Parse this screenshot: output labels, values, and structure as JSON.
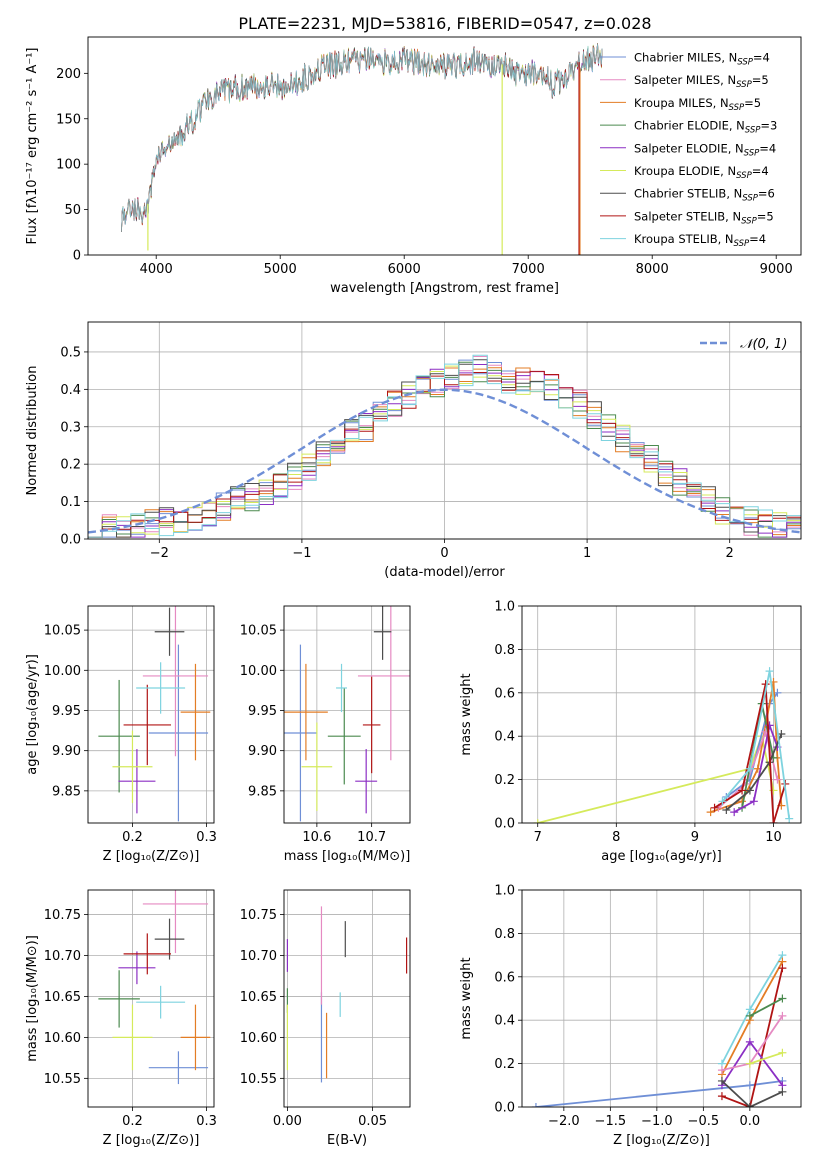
{
  "colors": {
    "chabrier_miles": "#6f8fd6",
    "salpeter_miles": "#e58ac2",
    "kroupa_miles": "#e37d25",
    "chabrier_elodie": "#4b8a4f",
    "salpeter_elodie": "#8b2fc4",
    "kroupa_elodie": "#d5ea5b",
    "chabrier_stelib": "#4d4d4d",
    "salpeter_stelib": "#b01414",
    "kroupa_stelib": "#7ed3df",
    "gauss": "#6f8fd6",
    "grid": "#b0b0b0"
  },
  "chart_data": [
    {
      "id": "spectrum",
      "type": "line",
      "title": "PLATE=2231, MJD=53816, FIBERID=0547, z=0.028",
      "xlabel": "wavelength [Angstrom, rest frame]",
      "ylabel": "Flux [fλ10⁻¹⁷ erg cm⁻² s⁻¹ A⁻¹]",
      "xlim": [
        3450,
        9200
      ],
      "ylim": [
        0,
        240
      ],
      "xticks": [
        4000,
        5000,
        6000,
        7000,
        8000,
        9000
      ],
      "yticks": [
        0,
        50,
        100,
        150,
        200
      ],
      "grid": false,
      "legend_position": "right",
      "continuum": {
        "x": [
          3720,
          3800,
          3900,
          3950,
          4000,
          4100,
          4200,
          4300,
          4400,
          4500,
          4700,
          4900,
          5100,
          5200,
          5300,
          5400,
          5600,
          5800,
          5900,
          6000,
          6200,
          6400,
          6563,
          6700,
          6800,
          6900,
          7000,
          7100,
          7200,
          7300,
          7400,
          7500,
          7600
        ],
        "y": [
          42,
          55,
          45,
          62,
          110,
          118,
          132,
          148,
          172,
          178,
          185,
          188,
          185,
          196,
          205,
          208,
          214,
          214,
          212,
          215,
          210,
          208,
          214,
          208,
          210,
          200,
          198,
          206,
          185,
          198,
          212,
          216,
          220
        ]
      },
      "dips": [
        {
          "x": 3933,
          "y": 5
        },
        {
          "x": 6790,
          "y": 0
        },
        {
          "x": 7410,
          "y": 0
        }
      ],
      "series": [
        {
          "name": "Chabrier MILES, N_SSP=4",
          "label_main": "Chabrier MILES, N",
          "label_sub": "SSP",
          "label_tail": "=4",
          "color_key": "chabrier_miles"
        },
        {
          "name": "Salpeter MILES, N_SSP=5",
          "label_main": "Salpeter MILES, N",
          "label_sub": "SSP",
          "label_tail": "=5",
          "color_key": "salpeter_miles"
        },
        {
          "name": "Kroupa MILES, N_SSP=5",
          "label_main": "Kroupa MILES, N",
          "label_sub": "SSP",
          "label_tail": "=5",
          "color_key": "kroupa_miles"
        },
        {
          "name": "Chabrier ELODIE, N_SSP=3",
          "label_main": "Chabrier ELODIE, N",
          "label_sub": "SSP",
          "label_tail": "=3",
          "color_key": "chabrier_elodie"
        },
        {
          "name": "Salpeter ELODIE, N_SSP=4",
          "label_main": "Salpeter ELODIE, N",
          "label_sub": "SSP",
          "label_tail": "=4",
          "color_key": "salpeter_elodie"
        },
        {
          "name": "Kroupa ELODIE, N_SSP=4",
          "label_main": "Kroupa ELODIE, N",
          "label_sub": "SSP",
          "label_tail": "=4",
          "color_key": "kroupa_elodie"
        },
        {
          "name": "Chabrier STELIB, N_SSP=6",
          "label_main": "Chabrier STELIB, N",
          "label_sub": "SSP",
          "label_tail": "=6",
          "color_key": "chabrier_stelib"
        },
        {
          "name": "Salpeter STELIB, N_SSP=5",
          "label_main": "Salpeter STELIB, N",
          "label_sub": "SSP",
          "label_tail": "=5",
          "color_key": "salpeter_stelib"
        },
        {
          "name": "Kroupa STELIB, N_SSP=4",
          "label_main": "Kroupa STELIB, N",
          "label_sub": "SSP",
          "label_tail": "=4",
          "color_key": "kroupa_stelib"
        }
      ]
    },
    {
      "id": "residuals",
      "type": "line",
      "xlabel": "(data-model)/error",
      "ylabel": "Normed distribution",
      "xlim": [
        -2.5,
        2.5
      ],
      "ylim": [
        0,
        0.58
      ],
      "xticks": [
        -2,
        -1,
        0,
        1,
        2
      ],
      "yticks": [
        0.0,
        0.1,
        0.2,
        0.3,
        0.4,
        0.5
      ],
      "grid": true,
      "legend_position": "top-right",
      "gauss_label": "𝒩(0, 1)",
      "bin_width": 0.1,
      "bins_start": -2.5,
      "hist_base": [
        0.02,
        0.025,
        0.03,
        0.035,
        0.04,
        0.045,
        0.05,
        0.06,
        0.07,
        0.085,
        0.1,
        0.115,
        0.13,
        0.15,
        0.17,
        0.19,
        0.22,
        0.25,
        0.28,
        0.3,
        0.33,
        0.36,
        0.38,
        0.4,
        0.42,
        0.44,
        0.45,
        0.46,
        0.44,
        0.43,
        0.42,
        0.41,
        0.4,
        0.38,
        0.36,
        0.33,
        0.3,
        0.27,
        0.24,
        0.21,
        0.18,
        0.15,
        0.12,
        0.1,
        0.08,
        0.06,
        0.05,
        0.04,
        0.03,
        0.025
      ]
    },
    {
      "id": "age_vs_Z",
      "type": "scatter",
      "xlabel": "Z [log₁₀(Z/Z⊙)]",
      "ylabel": "age  [log₁₀(age/yr)]",
      "xlim": [
        0.14,
        0.31
      ],
      "ylim": [
        9.81,
        10.08
      ],
      "xticks": [
        0.2,
        0.3
      ],
      "yticks": [
        9.85,
        9.9,
        9.95,
        10.0,
        10.05
      ],
      "grid": true,
      "points": [
        {
          "c": "chabrier_miles",
          "x": 0.262,
          "y": 9.922,
          "xerr": 0.04,
          "yerr": 0.11
        },
        {
          "c": "salpeter_miles",
          "x": 0.258,
          "y": 9.993,
          "xerr": 0.044,
          "yerr": 0.1
        },
        {
          "c": "kroupa_miles",
          "x": 0.285,
          "y": 9.948,
          "xerr": 0.02,
          "yerr": 0.06
        },
        {
          "c": "chabrier_elodie",
          "x": 0.182,
          "y": 9.918,
          "xerr": 0.028,
          "yerr": 0.07
        },
        {
          "c": "salpeter_elodie",
          "x": 0.206,
          "y": 9.862,
          "xerr": 0.025,
          "yerr": 0.04
        },
        {
          "c": "kroupa_elodie",
          "x": 0.2,
          "y": 9.88,
          "xerr": 0.027,
          "yerr": 0.045
        },
        {
          "c": "chabrier_stelib",
          "x": 0.25,
          "y": 10.048,
          "xerr": 0.02,
          "yerr": 0.03
        },
        {
          "c": "salpeter_stelib",
          "x": 0.22,
          "y": 9.932,
          "xerr": 0.032,
          "yerr": 0.05
        },
        {
          "c": "kroupa_stelib",
          "x": 0.238,
          "y": 9.978,
          "xerr": 0.033,
          "yerr": 0.032
        }
      ]
    },
    {
      "id": "age_vs_mass",
      "type": "scatter",
      "xlabel": "mass [log₁₀(M/M⊙)]",
      "ylabel": "",
      "xlim": [
        10.54,
        10.77
      ],
      "ylim": [
        9.81,
        10.08
      ],
      "xticks": [
        10.6,
        10.7
      ],
      "yticks": [
        9.85,
        9.9,
        9.95,
        10.0,
        10.05
      ],
      "grid": true,
      "points": [
        {
          "c": "chabrier_miles",
          "x": 10.57,
          "y": 9.922,
          "xerr": 0.03,
          "yerr": 0.11
        },
        {
          "c": "salpeter_miles",
          "x": 10.735,
          "y": 9.993,
          "xerr": 0.06,
          "yerr": 0.105
        },
        {
          "c": "kroupa_miles",
          "x": 10.58,
          "y": 9.948,
          "xerr": 0.04,
          "yerr": 0.06
        },
        {
          "c": "chabrier_elodie",
          "x": 10.65,
          "y": 9.918,
          "xerr": 0.03,
          "yerr": 0.06
        },
        {
          "c": "salpeter_elodie",
          "x": 10.69,
          "y": 9.862,
          "xerr": 0.02,
          "yerr": 0.04
        },
        {
          "c": "kroupa_elodie",
          "x": 10.6,
          "y": 9.88,
          "xerr": 0.028,
          "yerr": 0.055
        },
        {
          "c": "chabrier_stelib",
          "x": 10.72,
          "y": 10.048,
          "xerr": 0.016,
          "yerr": 0.035
        },
        {
          "c": "salpeter_stelib",
          "x": 10.7,
          "y": 9.932,
          "xerr": 0.016,
          "yerr": 0.06
        },
        {
          "c": "kroupa_stelib",
          "x": 10.645,
          "y": 9.978,
          "xerr": 0.01,
          "yerr": 0.03
        }
      ]
    },
    {
      "id": "weights_vs_age",
      "type": "line",
      "xlabel": "age  [log₁₀(age/yr)]",
      "ylabel": "mass weight",
      "xlim": [
        6.8,
        10.35
      ],
      "ylim": [
        0,
        1
      ],
      "xticks": [
        7,
        8,
        9,
        10
      ],
      "yticks": [
        0.0,
        0.2,
        0.4,
        0.6,
        0.8,
        1.0
      ],
      "grid": true,
      "series": [
        {
          "c": "kroupa_elodie",
          "x": [
            7.0,
            9.7,
            9.85,
            10.0
          ],
          "y": [
            0.0,
            0.25,
            0.4,
            0.15
          ]
        },
        {
          "c": "chabrier_miles",
          "x": [
            9.4,
            9.7,
            9.95,
            10.05
          ],
          "y": [
            0.12,
            0.2,
            0.55,
            0.6
          ]
        },
        {
          "c": "kroupa_miles",
          "x": [
            9.2,
            9.6,
            9.8,
            10.0,
            10.05,
            10.1
          ],
          "y": [
            0.05,
            0.1,
            0.25,
            0.65,
            0.3,
            0.08
          ]
        },
        {
          "c": "salpeter_miles",
          "x": [
            9.3,
            9.65,
            9.9,
            10.05
          ],
          "y": [
            0.07,
            0.18,
            0.42,
            0.2
          ]
        },
        {
          "c": "chabrier_elodie",
          "x": [
            9.6,
            9.85,
            10.0
          ],
          "y": [
            0.07,
            0.55,
            0.3
          ]
        },
        {
          "c": "salpeter_elodie",
          "x": [
            9.5,
            9.75,
            9.95,
            10.05
          ],
          "y": [
            0.05,
            0.1,
            0.45,
            0.35
          ]
        },
        {
          "c": "chabrier_stelib",
          "x": [
            9.4,
            9.7,
            9.95,
            10.1
          ],
          "y": [
            0.06,
            0.15,
            0.28,
            0.41
          ]
        },
        {
          "c": "salpeter_stelib",
          "x": [
            9.25,
            9.6,
            9.9,
            10.0,
            10.15
          ],
          "y": [
            0.07,
            0.15,
            0.64,
            0.0,
            0.18
          ]
        },
        {
          "c": "kroupa_stelib",
          "x": [
            9.35,
            9.7,
            9.95,
            10.2
          ],
          "y": [
            0.1,
            0.25,
            0.7,
            0.02
          ]
        }
      ]
    },
    {
      "id": "mass_vs_Z",
      "type": "scatter",
      "xlabel": "Z [log₁₀(Z/Z⊙)]",
      "ylabel": "mass [log₁₀(M/M⊙)]",
      "xlim": [
        0.14,
        0.31
      ],
      "ylim": [
        10.515,
        10.78
      ],
      "xticks": [
        0.2,
        0.3
      ],
      "yticks": [
        10.55,
        10.6,
        10.65,
        10.7,
        10.75
      ],
      "grid": true,
      "points": [
        {
          "c": "chabrier_miles",
          "x": 0.262,
          "y": 10.563,
          "xerr": 0.04,
          "yerr": 0.02
        },
        {
          "c": "salpeter_miles",
          "x": 0.258,
          "y": 10.763,
          "xerr": 0.044,
          "yerr": 0.06
        },
        {
          "c": "kroupa_miles",
          "x": 0.285,
          "y": 10.6,
          "xerr": 0.02,
          "yerr": 0.04
        },
        {
          "c": "chabrier_elodie",
          "x": 0.182,
          "y": 10.647,
          "xerr": 0.028,
          "yerr": 0.035
        },
        {
          "c": "salpeter_elodie",
          "x": 0.206,
          "y": 10.685,
          "xerr": 0.025,
          "yerr": 0.02
        },
        {
          "c": "kroupa_elodie",
          "x": 0.2,
          "y": 10.6,
          "xerr": 0.027,
          "yerr": 0.04
        },
        {
          "c": "chabrier_stelib",
          "x": 0.25,
          "y": 10.72,
          "xerr": 0.02,
          "yerr": 0.025
        },
        {
          "c": "salpeter_stelib",
          "x": 0.22,
          "y": 10.702,
          "xerr": 0.032,
          "yerr": 0.025
        },
        {
          "c": "kroupa_stelib",
          "x": 0.238,
          "y": 10.643,
          "xerr": 0.033,
          "yerr": 0.02
        }
      ]
    },
    {
      "id": "mass_vs_ebv",
      "type": "scatter",
      "xlabel": "E(B-V)",
      "ylabel": "",
      "xlim": [
        -0.002,
        0.072
      ],
      "ylim": [
        10.515,
        10.78
      ],
      "xticks": [
        0.0,
        0.05
      ],
      "yticks": [
        10.55,
        10.6,
        10.65,
        10.7,
        10.75
      ],
      "grid": true,
      "points": [
        {
          "c": "chabrier_miles",
          "x": 0.02,
          "y": 10.6,
          "xerr": 0,
          "yerr": 0.055
        },
        {
          "c": "salpeter_miles",
          "x": 0.02,
          "y": 10.7,
          "xerr": 0,
          "yerr": 0.06
        },
        {
          "c": "kroupa_miles",
          "x": 0.023,
          "y": 10.59,
          "xerr": 0,
          "yerr": 0.04
        },
        {
          "c": "chabrier_elodie",
          "x": 0.0,
          "y": 10.645,
          "xerr": 0,
          "yerr": 0.015
        },
        {
          "c": "salpeter_elodie",
          "x": 0.0,
          "y": 10.7,
          "xerr": 0,
          "yerr": 0.02
        },
        {
          "c": "kroupa_elodie",
          "x": 0.0,
          "y": 10.6,
          "xerr": 0,
          "yerr": 0.04
        },
        {
          "c": "chabrier_stelib",
          "x": 0.034,
          "y": 10.72,
          "xerr": 0,
          "yerr": 0.022
        },
        {
          "c": "salpeter_stelib",
          "x": 0.07,
          "y": 10.7,
          "xerr": 0,
          "yerr": 0.022
        },
        {
          "c": "kroupa_stelib",
          "x": 0.031,
          "y": 10.64,
          "xerr": 0,
          "yerr": 0.015
        }
      ]
    },
    {
      "id": "weights_vs_Z",
      "type": "line",
      "xlabel": "Z [log₁₀(Z/Z⊙)]",
      "ylabel": "mass weight",
      "xlim": [
        -2.45,
        0.55
      ],
      "ylim": [
        0,
        1
      ],
      "xticks": [
        -2.0,
        -1.5,
        -1.0,
        -0.5,
        0.0
      ],
      "yticks": [
        0.0,
        0.2,
        0.4,
        0.6,
        0.8,
        1.0
      ],
      "grid": true,
      "series": [
        {
          "c": "chabrier_miles",
          "x": [
            -2.3,
            0.0,
            0.35
          ],
          "y": [
            0.0,
            0.1,
            0.12
          ]
        },
        {
          "c": "kroupa_stelib",
          "x": [
            -0.3,
            0.0,
            0.35
          ],
          "y": [
            0.2,
            0.45,
            0.7
          ]
        },
        {
          "c": "kroupa_miles",
          "x": [
            -0.3,
            0.0,
            0.35
          ],
          "y": [
            0.15,
            0.4,
            0.67
          ]
        },
        {
          "c": "salpeter_stelib",
          "x": [
            -0.3,
            0.0,
            0.35
          ],
          "y": [
            0.05,
            0.0,
            0.64
          ]
        },
        {
          "c": "salpeter_elodie",
          "x": [
            -0.3,
            0.0,
            0.35
          ],
          "y": [
            0.1,
            0.3,
            0.1
          ]
        },
        {
          "c": "chabrier_elodie",
          "x": [
            0.0,
            0.35
          ],
          "y": [
            0.42,
            0.5
          ]
        },
        {
          "c": "salpeter_miles",
          "x": [
            -0.3,
            0.0,
            0.35
          ],
          "y": [
            0.17,
            0.2,
            0.42
          ]
        },
        {
          "c": "chabrier_stelib",
          "x": [
            -0.3,
            0.0,
            0.35
          ],
          "y": [
            0.12,
            0.0,
            0.07
          ]
        },
        {
          "c": "kroupa_elodie",
          "x": [
            0.0,
            0.35
          ],
          "y": [
            0.2,
            0.25
          ]
        }
      ]
    }
  ]
}
